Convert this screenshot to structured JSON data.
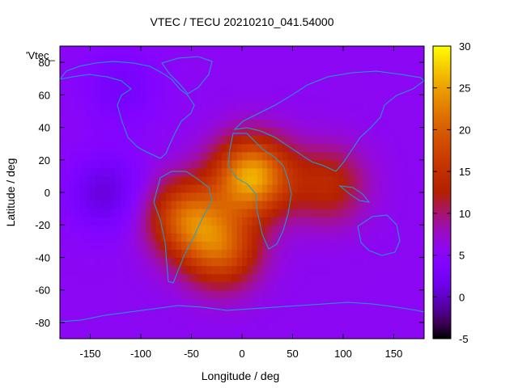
{
  "chart_data": {
    "type": "heatmap",
    "title": "VTEC / TECU 20210210_041.54000",
    "xlabel": "Longitude / deg",
    "ylabel": "Latitude / deg",
    "xlim": [
      -180,
      180
    ],
    "ylim": [
      -90,
      90
    ],
    "xticks": [
      -150,
      -100,
      -50,
      0,
      50,
      100,
      150
    ],
    "yticks": [
      -80,
      -60,
      -40,
      -20,
      0,
      20,
      40,
      60,
      80
    ],
    "legend_label": "'Vtec_",
    "colorbar": {
      "range": [
        -5,
        30
      ],
      "ticks": [
        -5,
        0,
        5,
        10,
        15,
        20,
        25,
        30
      ],
      "palette": "gnuplot-pm3d"
    },
    "features": [
      {
        "name": "equatorial-anomaly-peak",
        "lon": 10,
        "lat": 10,
        "value": 29
      },
      {
        "name": "south-america-crest",
        "lon": -55,
        "lat": -15,
        "value": 22
      },
      {
        "name": "south-atlantic-region",
        "lon": -20,
        "lat": -35,
        "value": 21
      },
      {
        "name": "indian-ocean-crest",
        "lon": 85,
        "lat": 5,
        "value": 15
      },
      {
        "name": "pacific-minimum",
        "lon": -135,
        "lat": 0,
        "value": 0
      },
      {
        "name": "arctic-minimum",
        "lon": -120,
        "lat": 65,
        "value": 2
      }
    ]
  }
}
